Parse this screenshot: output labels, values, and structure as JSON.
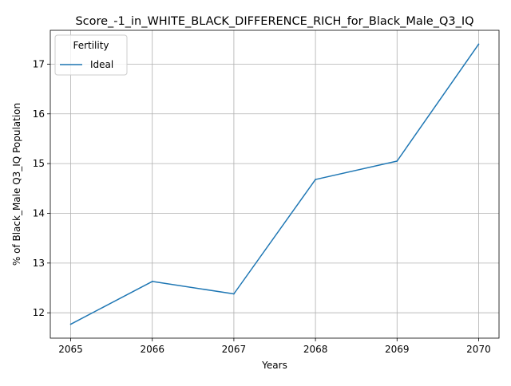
{
  "chart_data": {
    "type": "line",
    "title": "Score_-1_in_WHITE_BLACK_DIFFERENCE_RICH_for_Black_Male_Q3_IQ",
    "xlabel": "Years",
    "ylabel": "% of Black_Male Q3_IQ Population",
    "x": [
      2065,
      2066,
      2067,
      2068,
      2069,
      2070
    ],
    "series": [
      {
        "name": "Ideal",
        "values": [
          11.77,
          12.63,
          12.38,
          14.68,
          15.05,
          17.4
        ],
        "color": "#1f77b4"
      }
    ],
    "xticks": [
      "2065",
      "2066",
      "2067",
      "2068",
      "2069",
      "2070"
    ],
    "yticks": [
      "12",
      "13",
      "14",
      "15",
      "16",
      "17"
    ],
    "xlim": [
      2064.75,
      2070.25
    ],
    "ylim": [
      11.49,
      17.68
    ],
    "grid": true,
    "legend": {
      "title": "Fertility",
      "placement": "upper-left"
    }
  }
}
